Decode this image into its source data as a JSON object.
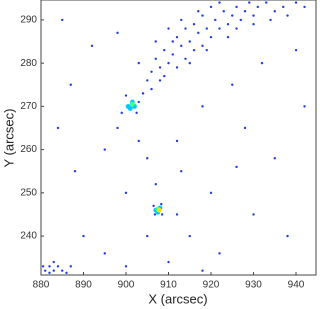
{
  "chart_data": {
    "type": "scatter",
    "xlabel": "X (arcsec)",
    "ylabel": "Y (arcsec)",
    "xlim": [
      880,
      944.7
    ],
    "ylim": [
      231,
      294.6
    ],
    "xticks": [
      880,
      890,
      900,
      910,
      920,
      930,
      940
    ],
    "yticks": [
      240,
      250,
      260,
      270,
      280,
      290
    ],
    "series": [
      {
        "color": "#1f3fe6",
        "x": [
          905,
          906,
          908,
          907,
          909,
          910,
          911,
          912,
          913,
          914,
          912,
          915,
          916,
          917,
          918,
          916,
          919,
          920,
          921,
          922,
          918,
          923,
          924,
          925,
          926,
          927,
          920,
          922,
          928,
          929,
          930,
          931,
          933,
          935,
          937,
          940,
          914,
          913,
          917,
          911,
          909,
          906,
          904,
          908,
          915,
          919,
          924,
          926,
          930,
          934,
          938,
          942,
          910,
          907,
          903,
          885,
          892,
          898,
          895,
          888,
          900,
          905,
          912,
          918,
          925,
          932,
          940,
          928,
          935,
          920,
          930,
          942,
          915,
          922,
          890,
          895,
          900,
          910,
          918,
          884,
          887,
          898,
          903,
          913,
          907,
          905,
          912,
          938,
          926,
          881,
          882,
          883,
          884,
          882,
          885,
          886,
          880.5,
          883,
          887,
          899,
          903,
          900,
          902.5,
          904,
          906.5,
          908.5,
          906.8,
          908.3
        ],
        "y": [
          276,
          278,
          279,
          281,
          277,
          280,
          282,
          279,
          284,
          281,
          286,
          285,
          283,
          287,
          284,
          289,
          288,
          286,
          290,
          288,
          291,
          292,
          289,
          291,
          293,
          290,
          293,
          294,
          292,
          294,
          291,
          293,
          294,
          292,
          293,
          294,
          288,
          290,
          292,
          285,
          283,
          274,
          273,
          276,
          280,
          283,
          286,
          288,
          289,
          290,
          291,
          293,
          288,
          285,
          280,
          290,
          284,
          287,
          260,
          255,
          250,
          258,
          262,
          270,
          275,
          280,
          283,
          265,
          258,
          250,
          245,
          270,
          240,
          236,
          240,
          236,
          233,
          234,
          232,
          265,
          275,
          265,
          262,
          255,
          252,
          240,
          245,
          240,
          256,
          232,
          233,
          232,
          233,
          231.5,
          232,
          231.5,
          233,
          234,
          233,
          268.5,
          271,
          272.5,
          268.5,
          273,
          247,
          245,
          245,
          247.4
        ]
      },
      {
        "color": "#00c8ff",
        "x": [
          900.5,
          901.5,
          902,
          901,
          907,
          908,
          907.5
        ],
        "y": [
          270,
          271,
          270,
          269.5,
          246,
          246.5,
          245.5
        ]
      },
      {
        "color": "#40ff80",
        "x": [
          901.5,
          907.5
        ],
        "y": [
          270.5,
          246.2
        ]
      },
      {
        "color": "#ffe000",
        "x": [
          907.8
        ],
        "y": [
          246
        ]
      }
    ]
  }
}
